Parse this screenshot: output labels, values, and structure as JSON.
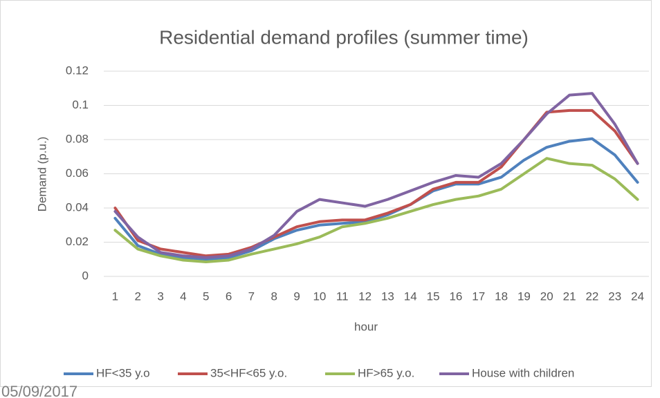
{
  "chart_data": {
    "type": "line",
    "title": "Residential demand profiles (summer time)",
    "x_label": "hour",
    "y_label": "Demand (p.u.)",
    "annotation": "05/09/2017",
    "categories": [
      "1",
      "2",
      "3",
      "4",
      "5",
      "6",
      "7",
      "8",
      "9",
      "10",
      "11",
      "12",
      "13",
      "14",
      "15",
      "16",
      "17",
      "18",
      "19",
      "20",
      "21",
      "22",
      "23",
      "24"
    ],
    "series": [
      {
        "name": "HF<35 y.o",
        "color": "#4f81bd",
        "values": [
          0.034,
          0.018,
          0.013,
          0.011,
          0.01,
          0.011,
          0.015,
          0.022,
          0.027,
          0.03,
          0.031,
          0.032,
          0.036,
          0.042,
          0.05,
          0.054,
          0.054,
          0.058,
          0.068,
          0.0755,
          0.079,
          0.0805,
          0.071,
          0.055
        ]
      },
      {
        "name": "35<HF<65 y.o.",
        "color": "#c0504d",
        "values": [
          0.04,
          0.021,
          0.016,
          0.014,
          0.012,
          0.013,
          0.017,
          0.023,
          0.029,
          0.032,
          0.033,
          0.033,
          0.037,
          0.042,
          0.051,
          0.055,
          0.055,
          0.064,
          0.08,
          0.096,
          0.097,
          0.097,
          0.085,
          0.066
        ]
      },
      {
        "name": "HF>65 y.o.",
        "color": "#9bbb59",
        "values": [
          0.027,
          0.016,
          0.012,
          0.0095,
          0.0085,
          0.0095,
          0.013,
          0.016,
          0.019,
          0.023,
          0.029,
          0.031,
          0.034,
          0.038,
          0.042,
          0.045,
          0.047,
          0.051,
          0.06,
          0.069,
          0.066,
          0.065,
          0.057,
          0.045
        ]
      },
      {
        "name": "House with children",
        "color": "#8064a2",
        "values": [
          0.038,
          0.023,
          0.014,
          0.012,
          0.011,
          0.012,
          0.016,
          0.024,
          0.038,
          0.045,
          0.043,
          0.041,
          0.045,
          0.05,
          0.055,
          0.059,
          0.058,
          0.066,
          0.08,
          0.095,
          0.106,
          0.107,
          0.089,
          0.066
        ]
      }
    ],
    "ylim": [
      0,
      0.12
    ],
    "yticks": [
      0,
      0.02,
      0.04,
      0.06,
      0.08,
      0.1,
      0.12
    ],
    "grid": true,
    "legend": "bottom"
  }
}
